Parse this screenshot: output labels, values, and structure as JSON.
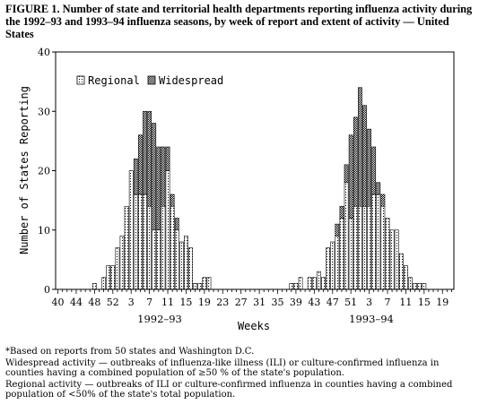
{
  "title": "FIGURE 1. Number of state and territorial health departments reporting influenza activity during the 1992–93 and 1993–94 influenza seasons, by week of report and extent of activity — United States",
  "chart_data": {
    "type": "bar",
    "stacked": true,
    "xlabel": "Weeks",
    "ylabel": "Number of States Reporting",
    "ylim": [
      0,
      40
    ],
    "yticks": [
      0,
      10,
      20,
      30,
      40
    ],
    "x_tick_labels": [
      "40",
      "44",
      "48",
      "52",
      "3",
      "7",
      "11",
      "15",
      "19",
      "23",
      "27",
      "31",
      "35",
      "39",
      "43",
      "47",
      "51",
      "3",
      "7",
      "11",
      "15",
      "19"
    ],
    "season_labels": [
      "1992–93",
      "1993–94"
    ],
    "legend": {
      "position": "top-left",
      "entries": [
        "Regional",
        "Widespread"
      ]
    },
    "weeks": [
      "40",
      "41",
      "42",
      "43",
      "44",
      "45",
      "46",
      "47",
      "48",
      "49",
      "50",
      "51",
      "52",
      "53",
      "1",
      "2",
      "3",
      "4",
      "5",
      "6",
      "7",
      "8",
      "9",
      "10",
      "11",
      "12",
      "13",
      "14",
      "15",
      "16",
      "17",
      "18",
      "19",
      "20",
      "21",
      "22",
      "23",
      "24",
      "25",
      "26",
      "27",
      "28",
      "29",
      "30",
      "31",
      "32",
      "33",
      "34",
      "35",
      "36",
      "37",
      "38",
      "39",
      "40",
      "41",
      "42",
      "43",
      "44",
      "45",
      "46",
      "47",
      "48",
      "49",
      "50",
      "51",
      "52",
      "1",
      "2",
      "3",
      "4",
      "5",
      "6",
      "7",
      "8",
      "9",
      "10",
      "11",
      "12",
      "13",
      "14",
      "15",
      "16",
      "17",
      "18",
      "19",
      "20",
      "21"
    ],
    "series": [
      {
        "name": "Regional",
        "values": [
          0,
          0,
          0,
          0,
          0,
          0,
          0,
          0,
          1,
          0,
          2,
          4,
          4,
          7,
          9,
          14,
          20,
          16,
          16,
          16,
          14,
          10,
          10,
          14,
          20,
          14,
          10,
          8,
          9,
          7,
          1,
          1,
          2,
          2,
          0,
          0,
          0,
          0,
          0,
          0,
          0,
          0,
          0,
          0,
          0,
          0,
          0,
          0,
          0,
          0,
          0,
          1,
          1,
          2,
          0,
          2,
          2,
          3,
          2,
          7,
          8,
          9,
          12,
          18,
          12,
          14,
          14,
          14,
          14,
          16,
          16,
          14,
          12,
          10,
          10,
          6,
          4,
          2,
          1,
          1,
          1,
          0,
          0,
          0,
          0,
          0,
          0
        ]
      },
      {
        "name": "Widespread",
        "values": [
          0,
          0,
          0,
          0,
          0,
          0,
          0,
          0,
          0,
          0,
          0,
          0,
          0,
          0,
          0,
          0,
          0,
          6,
          10,
          14,
          16,
          18,
          14,
          10,
          4,
          2,
          2,
          0,
          0,
          0,
          0,
          0,
          0,
          0,
          0,
          0,
          0,
          0,
          0,
          0,
          0,
          0,
          0,
          0,
          0,
          0,
          0,
          0,
          0,
          0,
          0,
          0,
          0,
          0,
          0,
          0,
          0,
          0,
          0,
          0,
          0,
          2,
          2,
          3,
          14,
          15,
          20,
          17,
          13,
          8,
          2,
          2,
          0,
          0,
          0,
          0,
          0,
          0,
          0,
          0,
          0,
          0,
          0,
          0,
          0,
          0,
          0
        ]
      }
    ]
  },
  "footnotes": [
    "*Based on reports from 50 states and Washington D.C.",
    "Widespread activity — outbreaks of influenza-like illness (ILI) or culture-confirmed influenza in counties having a combined population of ≥50 % of the state's population.",
    "Regional activity — outbreaks of ILI or culture-confirmed influenza in counties having a combined population of <50% of the state's total population."
  ]
}
